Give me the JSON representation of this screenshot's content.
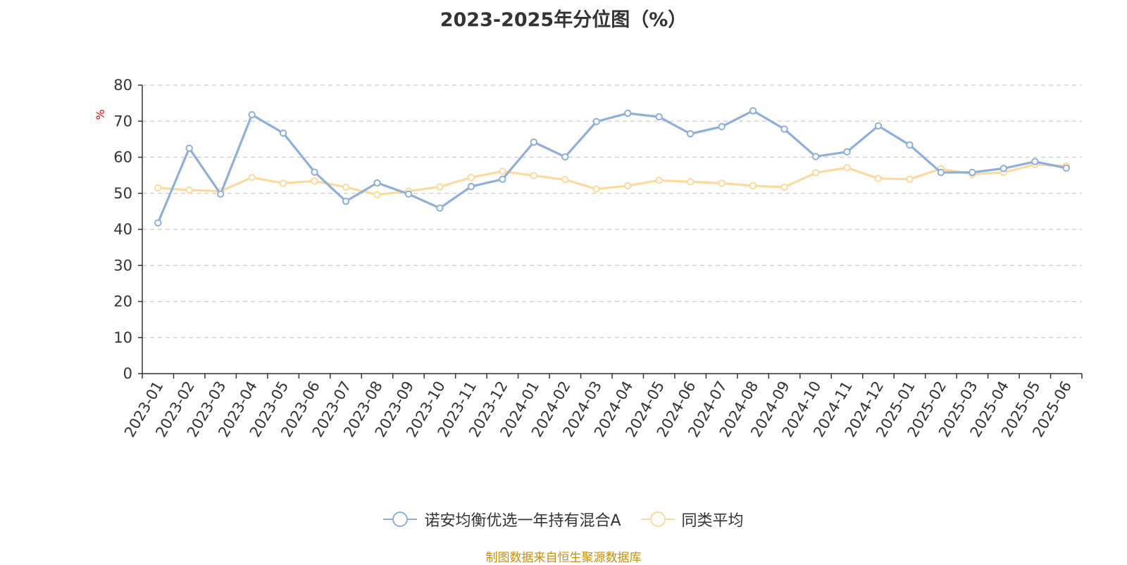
{
  "colors": {
    "series_a": "#8eaedb",
    "series_b": "#fdd99b",
    "ylabel": "#ff0000",
    "source": "#c8900b",
    "grid": "#cccccc",
    "axis": "#333333",
    "text": "#333333"
  },
  "source_note": "制图数据来自恒生聚源数据库",
  "chart_data": {
    "type": "line",
    "title": "2023-2025年分位图（%）",
    "xlabel": "",
    "ylabel": "%",
    "ylim": [
      0,
      80
    ],
    "yticks": [
      0,
      10,
      20,
      30,
      40,
      50,
      60,
      70,
      80
    ],
    "grid": true,
    "legend_position": "bottom",
    "categories": [
      "2023-01",
      "2023-02",
      "2023-03",
      "2023-04",
      "2023-05",
      "2023-06",
      "2023-07",
      "2023-08",
      "2023-09",
      "2023-10",
      "2023-11",
      "2023-12",
      "2024-01",
      "2024-02",
      "2024-03",
      "2024-04",
      "2024-05",
      "2024-06",
      "2024-07",
      "2024-08",
      "2024-09",
      "2024-10",
      "2024-11",
      "2024-12",
      "2025-01",
      "2025-02",
      "2025-03",
      "2025-04",
      "2025-05",
      "2025-06"
    ],
    "series": [
      {
        "name": "诺安均衡优选一年持有混合A",
        "values": [
          41.8,
          62.5,
          49.8,
          71.8,
          66.7,
          55.9,
          47.8,
          52.9,
          49.8,
          45.9,
          51.9,
          53.9,
          64.2,
          60.1,
          69.9,
          72.2,
          71.2,
          66.5,
          68.5,
          72.9,
          67.8,
          60.2,
          61.5,
          68.7,
          63.4,
          55.8,
          55.8,
          56.9,
          58.8,
          57.0
        ]
      },
      {
        "name": "同类平均",
        "values": [
          51.5,
          50.9,
          50.6,
          54.4,
          52.8,
          53.4,
          51.7,
          49.6,
          50.6,
          51.8,
          54.4,
          56.1,
          54.9,
          53.8,
          51.2,
          52.1,
          53.6,
          53.2,
          52.8,
          52.1,
          51.7,
          55.7,
          57.1,
          54.1,
          53.9,
          56.8,
          55.3,
          55.8,
          58.0,
          57.6
        ]
      }
    ]
  }
}
